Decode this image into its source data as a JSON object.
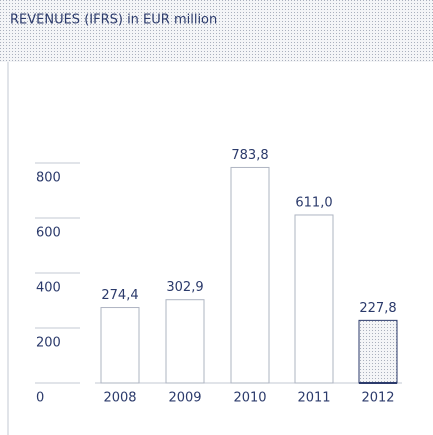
{
  "chart_data": {
    "type": "bar",
    "title": "REVENUES (IFRS) in EUR million",
    "categories": [
      "2008",
      "2009",
      "2010",
      "2011",
      "2012"
    ],
    "values": [
      274.4,
      302.9,
      783.8,
      611.0,
      227.8
    ],
    "value_labels": [
      "274,4",
      "302,9",
      "783,8",
      "611,0",
      "227,8"
    ],
    "color": "#2b3a6b",
    "ylim": [
      0,
      800
    ],
    "yticks": [
      0,
      200,
      400,
      600,
      800
    ]
  }
}
